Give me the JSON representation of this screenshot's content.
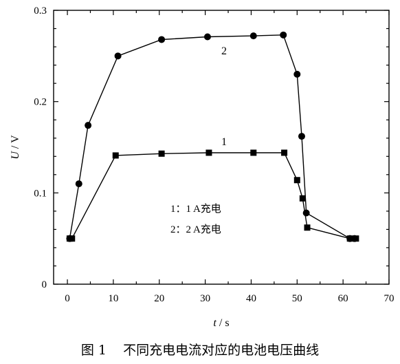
{
  "caption": "图 1    不同充电电流对应的电池电压曲线",
  "chart_data": {
    "type": "line",
    "title": "",
    "xlabel_var": "t",
    "xlabel_unit": "s",
    "ylabel_var": "U",
    "ylabel_unit": "V",
    "xlim": [
      -3,
      70
    ],
    "ylim": [
      0,
      0.3
    ],
    "xticks": [
      0,
      10,
      20,
      30,
      40,
      50,
      60,
      70
    ],
    "yticks": [
      0,
      0.1,
      0.2,
      0.3
    ],
    "xtick_labels": [
      "0",
      "10",
      "20",
      "30",
      "40",
      "50",
      "60",
      "70"
    ],
    "ytick_labels": [
      "0",
      "0.1",
      "0.2",
      "0.3"
    ],
    "grid": false,
    "legend_position": "center",
    "legend": [
      {
        "num": "1：",
        "text": "1 A充电"
      },
      {
        "num": "2：",
        "text": "2 A充电"
      }
    ],
    "series": [
      {
        "label": "1",
        "marker": "square",
        "x": [
          0.5,
          1.0,
          10.5,
          20.5,
          30.8,
          40.5,
          47.2,
          50.0,
          51.2,
          52.2,
          61.5,
          62.8
        ],
        "y": [
          0.05,
          0.05,
          0.141,
          0.143,
          0.144,
          0.144,
          0.144,
          0.114,
          0.094,
          0.062,
          0.05,
          0.05
        ]
      },
      {
        "label": "2",
        "marker": "circle",
        "x": [
          0.5,
          2.5,
          4.5,
          11.0,
          20.5,
          30.5,
          40.5,
          47.0,
          50.0,
          51.0,
          52.0,
          61.5,
          62.5
        ],
        "y": [
          0.05,
          0.11,
          0.174,
          0.25,
          0.268,
          0.271,
          0.272,
          0.273,
          0.23,
          0.162,
          0.078,
          0.05,
          0.05
        ]
      }
    ]
  }
}
